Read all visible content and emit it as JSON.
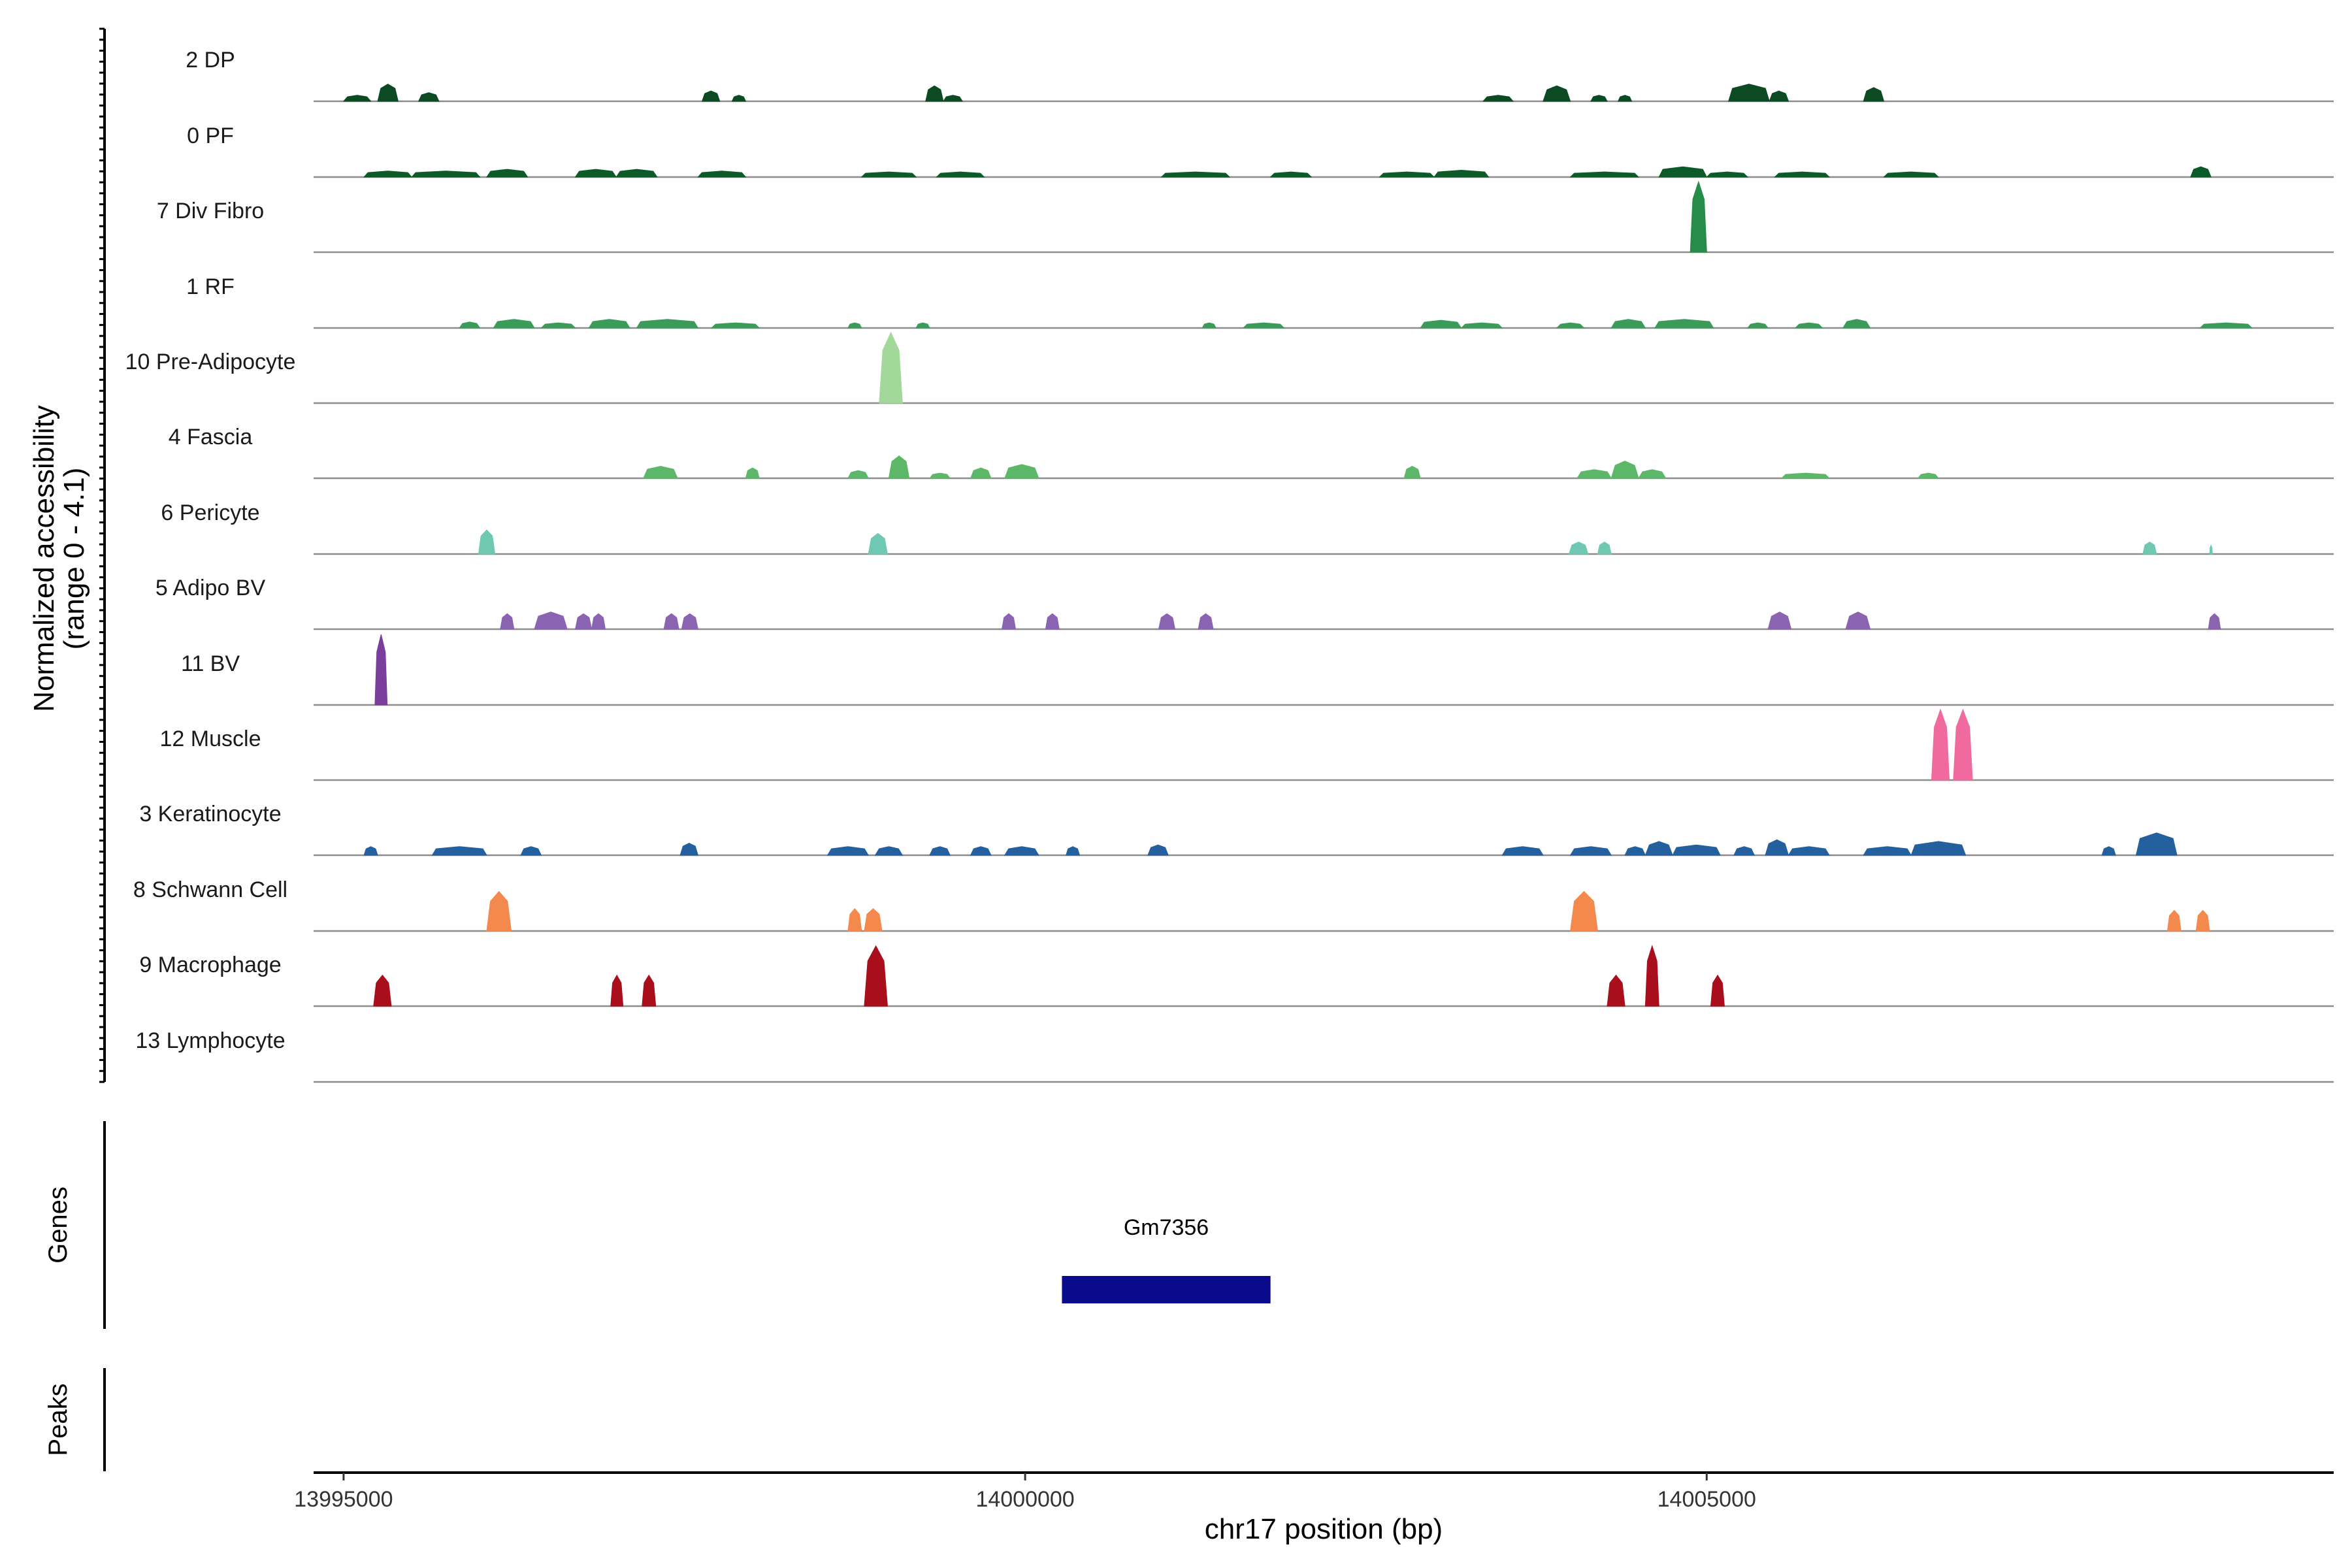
{
  "chart_data": {
    "type": "coverage",
    "title": "",
    "region": {
      "chrom": "chr17",
      "start": 13994780,
      "end": 14009600
    },
    "y_axis": {
      "label_line1": "Normalized accessibility",
      "label_line2": "(range 0 - 4.1)",
      "ylim": [
        0,
        4.1
      ]
    },
    "x_axis": {
      "label": "chr17 position (bp)",
      "ticks": [
        {
          "value": 13995000,
          "label": "13995000"
        },
        {
          "value": 14000000,
          "label": "14000000"
        },
        {
          "value": 14005000,
          "label": "14005000"
        }
      ]
    },
    "panels": {
      "genes": "Genes",
      "peaks": "Peaks"
    },
    "tracks": [
      {
        "name": "2 DP",
        "color": "#0b4a22",
        "peaks": [
          [
            13995000,
            13995200,
            0.35
          ],
          [
            13995250,
            13995400,
            1.0
          ],
          [
            13995550,
            13995700,
            0.5
          ],
          [
            13997630,
            13997760,
            0.6
          ],
          [
            13997850,
            13997950,
            0.35
          ],
          [
            13999270,
            13999400,
            0.9
          ],
          [
            13999400,
            13999540,
            0.35
          ],
          [
            14003360,
            14003580,
            0.35
          ],
          [
            14003800,
            14004000,
            0.9
          ],
          [
            14004150,
            14004270,
            0.35
          ],
          [
            14004350,
            14004450,
            0.35
          ],
          [
            14005160,
            14005460,
            1.0
          ],
          [
            14005460,
            14005600,
            0.6
          ],
          [
            14006150,
            14006300,
            0.8
          ]
        ]
      },
      {
        "name": "0 PF",
        "color": "#0b5a28",
        "peaks": [
          [
            13995150,
            13995500,
            0.35
          ],
          [
            13995500,
            13996000,
            0.35
          ],
          [
            13996050,
            13996350,
            0.45
          ],
          [
            13996700,
            13997000,
            0.45
          ],
          [
            13997000,
            13997300,
            0.45
          ],
          [
            13997600,
            13997950,
            0.35
          ],
          [
            13998800,
            13999200,
            0.3
          ],
          [
            13999350,
            13999700,
            0.3
          ],
          [
            14001000,
            14001500,
            0.3
          ],
          [
            14001800,
            14002100,
            0.3
          ],
          [
            14002600,
            14003000,
            0.3
          ],
          [
            14003000,
            14003400,
            0.4
          ],
          [
            14004000,
            14004500,
            0.3
          ],
          [
            14004650,
            14005000,
            0.6
          ],
          [
            14005000,
            14005300,
            0.3
          ],
          [
            14005500,
            14005900,
            0.3
          ],
          [
            14006300,
            14006700,
            0.3
          ],
          [
            14008550,
            14008700,
            0.6
          ]
        ]
      },
      {
        "name": "7 Div Fibro",
        "color": "#268c4a",
        "peaks": [
          [
            14004880,
            14005000,
            4.1
          ]
        ]
      },
      {
        "name": "1 RF",
        "color": "#3a9c58",
        "peaks": [
          [
            13995850,
            13996000,
            0.35
          ],
          [
            13996100,
            13996400,
            0.5
          ],
          [
            13996450,
            13996700,
            0.3
          ],
          [
            13996800,
            13997100,
            0.5
          ],
          [
            13997150,
            13997600,
            0.5
          ],
          [
            13997700,
            13998050,
            0.3
          ],
          [
            13998700,
            13998800,
            0.3
          ],
          [
            13999200,
            13999300,
            0.3
          ],
          [
            14001300,
            14001400,
            0.3
          ],
          [
            14001600,
            14001900,
            0.3
          ],
          [
            14002900,
            14003200,
            0.45
          ],
          [
            14003200,
            14003500,
            0.3
          ],
          [
            14003900,
            14004100,
            0.3
          ],
          [
            14004300,
            14004550,
            0.5
          ],
          [
            14004620,
            14005050,
            0.5
          ],
          [
            14005300,
            14005450,
            0.3
          ],
          [
            14005650,
            14005850,
            0.3
          ],
          [
            14006000,
            14006200,
            0.5
          ],
          [
            14008620,
            14009000,
            0.3
          ]
        ]
      },
      {
        "name": "10 Pre-Adipocyte",
        "color": "#a2d89a",
        "peaks": [
          [
            13998930,
            13999100,
            4.1
          ]
        ]
      },
      {
        "name": "4 Fascia",
        "color": "#5cb868",
        "peaks": [
          [
            13997200,
            13997450,
            0.7
          ],
          [
            13997950,
            13998050,
            0.6
          ],
          [
            13998700,
            13998850,
            0.45
          ],
          [
            13999000,
            13999150,
            1.3
          ],
          [
            13999300,
            13999450,
            0.3
          ],
          [
            13999600,
            13999750,
            0.6
          ],
          [
            13999850,
            14000100,
            0.8
          ],
          [
            14002780,
            14002900,
            0.7
          ],
          [
            14004050,
            14004300,
            0.5
          ],
          [
            14004300,
            14004500,
            1.0
          ],
          [
            14004500,
            14004700,
            0.5
          ],
          [
            14005550,
            14005900,
            0.3
          ],
          [
            14006550,
            14006700,
            0.3
          ]
        ]
      },
      {
        "name": "6 Pericyte",
        "color": "#6ec8b2",
        "peaks": [
          [
            13995990,
            13996110,
            1.4
          ],
          [
            13998850,
            13998990,
            1.2
          ],
          [
            14003990,
            14004130,
            0.7
          ],
          [
            14004200,
            14004300,
            0.7
          ],
          [
            14008200,
            14008300,
            0.7
          ],
          [
            14008690,
            14008710,
            0.5
          ]
        ]
      },
      {
        "name": "5 Adipo BV",
        "color": "#8a64b0",
        "peaks": [
          [
            13996150,
            13996250,
            0.9
          ],
          [
            13996400,
            13996640,
            1.0
          ],
          [
            13996700,
            13996820,
            0.9
          ],
          [
            13996820,
            13996920,
            0.9
          ],
          [
            13997350,
            13997460,
            0.9
          ],
          [
            13997480,
            13997600,
            0.9
          ],
          [
            13999830,
            13999930,
            0.9
          ],
          [
            14000150,
            14000250,
            0.9
          ],
          [
            14000980,
            14001100,
            0.9
          ],
          [
            14001270,
            14001380,
            0.9
          ],
          [
            14005450,
            14005620,
            1.0
          ],
          [
            14006020,
            14006200,
            1.0
          ],
          [
            14008680,
            14008770,
            0.9
          ]
        ]
      },
      {
        "name": "11 BV",
        "color": "#7a3f9c",
        "peaks": [
          [
            13995230,
            13995320,
            4.1
          ]
        ]
      },
      {
        "name": "12 Muscle",
        "color": "#f06aa0",
        "peaks": [
          [
            14006650,
            14006780,
            4.1
          ],
          [
            14006810,
            14006950,
            4.1
          ]
        ]
      },
      {
        "name": "3 Keratinocyte",
        "color": "#25609e",
        "peaks": [
          [
            13995150,
            13995250,
            0.5
          ],
          [
            13995650,
            13996050,
            0.5
          ],
          [
            13996300,
            13996450,
            0.5
          ],
          [
            13997470,
            13997600,
            0.7
          ],
          [
            13998550,
            13998850,
            0.5
          ],
          [
            13998900,
            13999100,
            0.5
          ],
          [
            13999300,
            13999450,
            0.5
          ],
          [
            13999600,
            13999750,
            0.5
          ],
          [
            13999850,
            14000100,
            0.5
          ],
          [
            14000300,
            14000400,
            0.5
          ],
          [
            14000900,
            14001050,
            0.6
          ],
          [
            14003500,
            14003800,
            0.5
          ],
          [
            14004000,
            14004300,
            0.5
          ],
          [
            14004400,
            14004550,
            0.5
          ],
          [
            14004550,
            14004750,
            0.8
          ],
          [
            14004750,
            14005100,
            0.6
          ],
          [
            14005200,
            14005350,
            0.5
          ],
          [
            14005430,
            14005600,
            0.9
          ],
          [
            14005600,
            14005900,
            0.5
          ],
          [
            14006150,
            14006500,
            0.5
          ],
          [
            14006500,
            14006900,
            0.8
          ],
          [
            14007900,
            14008000,
            0.5
          ],
          [
            14008150,
            14008450,
            1.3
          ]
        ]
      },
      {
        "name": "8 Schwann Cell",
        "color": "#f4894e",
        "peaks": [
          [
            13996050,
            13996230,
            2.3
          ],
          [
            13998700,
            13998800,
            1.3
          ],
          [
            13998820,
            13998950,
            1.3
          ],
          [
            14004000,
            14004200,
            2.3
          ],
          [
            14008380,
            14008480,
            1.2
          ],
          [
            14008590,
            14008690,
            1.2
          ]
        ]
      },
      {
        "name": "9 Macrophage",
        "color": "#a80e1c",
        "peaks": [
          [
            13995220,
            13995350,
            1.8
          ],
          [
            13996960,
            13997050,
            1.8
          ],
          [
            13997190,
            13997290,
            1.8
          ],
          [
            13998820,
            13998990,
            3.5
          ],
          [
            14004270,
            14004400,
            1.8
          ],
          [
            14004550,
            14004650,
            3.5
          ],
          [
            14005030,
            14005130,
            1.8
          ]
        ]
      },
      {
        "name": "13 Lymphocyte",
        "color": "#888888",
        "peaks": []
      }
    ],
    "genes": [
      {
        "name": "Gm7356",
        "start": 14000270,
        "end": 14001800,
        "color": "#0a0a8c"
      }
    ]
  }
}
